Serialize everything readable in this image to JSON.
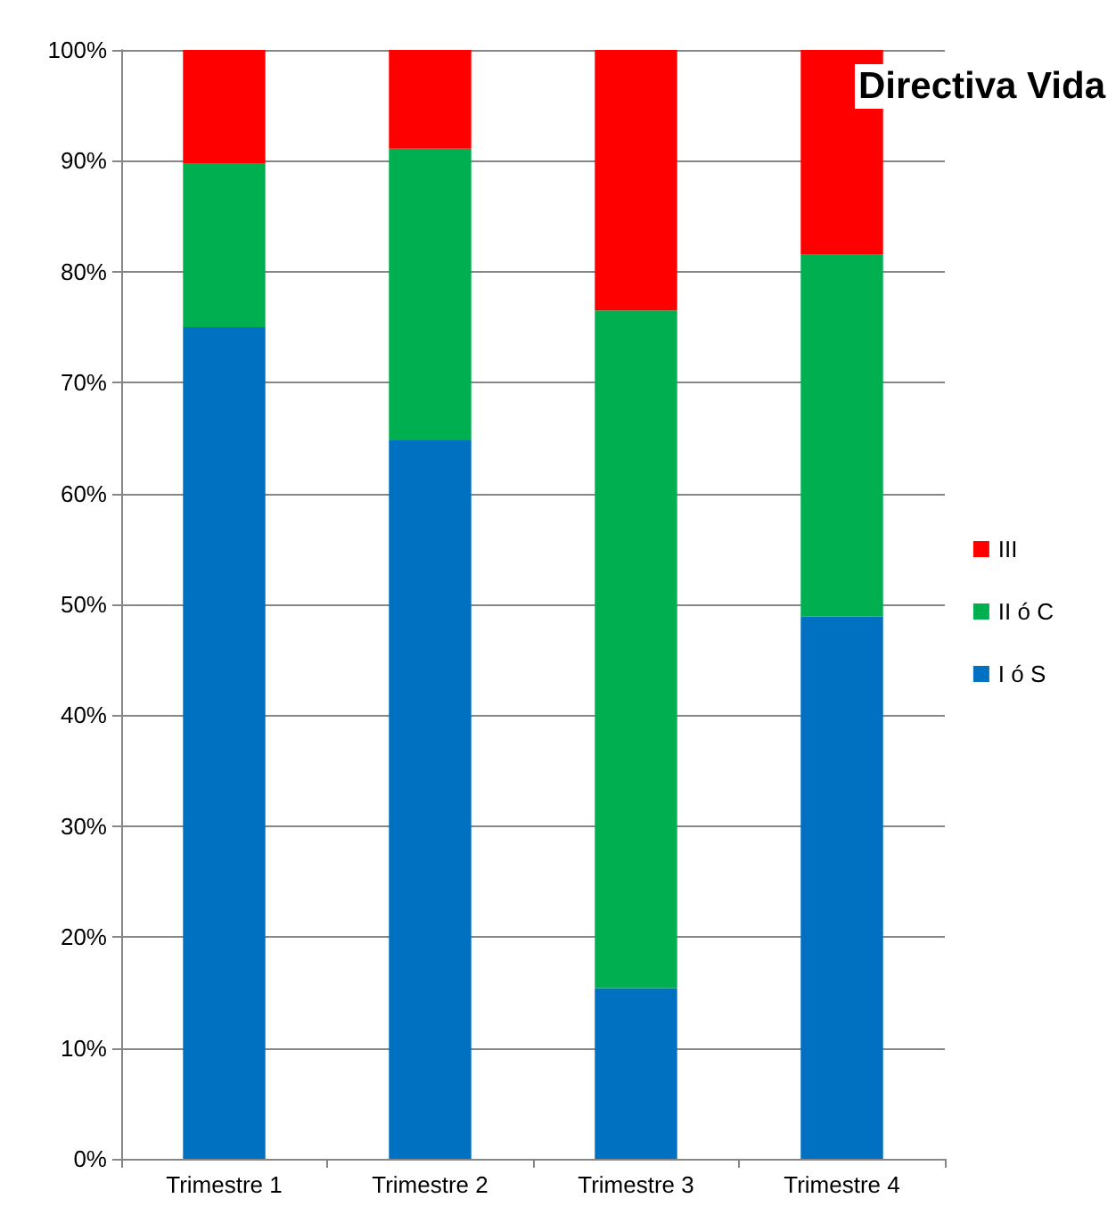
{
  "chart_data": {
    "type": "bar",
    "title": "Directiva Vida",
    "stacked": true,
    "categories": [
      "Trimestre 1",
      "Trimestre 2",
      "Trimestre 3",
      "Trimestre 4"
    ],
    "series": [
      {
        "name": "I ó S",
        "color": "#0070c0",
        "values": [
          75,
          64.8,
          15.4,
          48.9
        ]
      },
      {
        "name": "II ó C",
        "color": "#00b050",
        "values": [
          14.8,
          26.3,
          61.1,
          32.7
        ]
      },
      {
        "name": "III",
        "color": "#ff0000",
        "values": [
          10.2,
          8.9,
          23.5,
          18.4
        ]
      }
    ],
    "ylim": [
      0,
      100
    ],
    "yticks": [
      {
        "value": 0,
        "label": "0%"
      },
      {
        "value": 10,
        "label": "10%"
      },
      {
        "value": 20,
        "label": "20%"
      },
      {
        "value": 30,
        "label": "30%"
      },
      {
        "value": 40,
        "label": "40%"
      },
      {
        "value": 50,
        "label": "50%"
      },
      {
        "value": 60,
        "label": "60%"
      },
      {
        "value": 70,
        "label": "70%"
      },
      {
        "value": 80,
        "label": "80%"
      },
      {
        "value": 90,
        "label": "90%"
      },
      {
        "value": 100,
        "label": "100%"
      }
    ],
    "grid": "y",
    "legend": "right"
  }
}
